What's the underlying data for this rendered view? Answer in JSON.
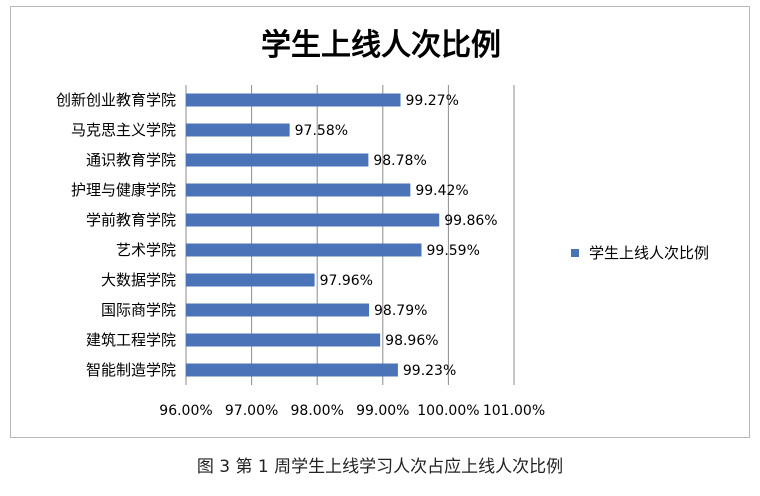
{
  "caption": "图 3 第 1 周学生上线学习人次占应上线人次比例",
  "chart_data": {
    "type": "bar",
    "orientation": "horizontal",
    "title": "学生上线人次比例",
    "categories": [
      "创新创业教育学院",
      "马克思主义学院",
      "通识教育学院",
      "护理与健康学院",
      "学前教育学院",
      "艺术学院",
      "大数据学院",
      "国际商学院",
      "建筑工程学院",
      "智能制造学院"
    ],
    "series": [
      {
        "name": "学生上线人次比例",
        "values": [
          99.27,
          97.58,
          98.78,
          99.42,
          99.86,
          99.59,
          97.96,
          98.79,
          98.96,
          99.23
        ],
        "labels": [
          "99.27%",
          "97.58%",
          "98.78%",
          "99.42%",
          "99.86%",
          "99.59%",
          "97.96%",
          "98.79%",
          "98.96%",
          "99.23%"
        ],
        "color": "#4a73b8"
      }
    ],
    "xlim": [
      96,
      101
    ],
    "x_ticks": [
      96,
      97,
      98,
      99,
      100,
      101
    ],
    "x_tick_labels": [
      "96.00%",
      "97.00%",
      "98.00%",
      "99.00%",
      "100.00%",
      "101.00%"
    ],
    "grid": true,
    "legend_position": "right",
    "colors": {
      "bar": "#4a73b8",
      "grid": "#8c8c8c",
      "text": "#000000"
    }
  }
}
